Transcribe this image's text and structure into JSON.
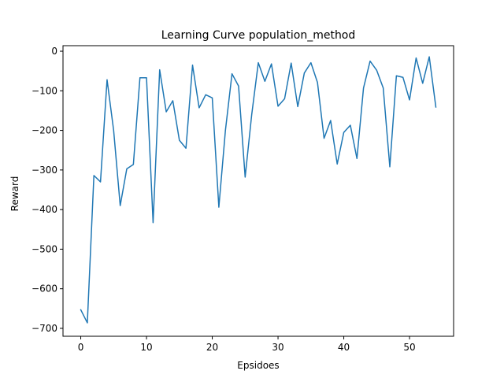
{
  "chart_data": {
    "type": "line",
    "title": "Learning Curve population_method",
    "xlabel": "Epsidoes",
    "ylabel": "Reward",
    "xlim": [
      -2.7,
      56.7
    ],
    "ylim": [
      -720,
      14
    ],
    "xticks": [
      0,
      10,
      20,
      30,
      40,
      50
    ],
    "yticks": [
      0,
      -100,
      -200,
      -300,
      -400,
      -500,
      -600,
      -700
    ],
    "xtick_labels": [
      "0",
      "10",
      "20",
      "30",
      "40",
      "50"
    ],
    "ytick_labels": [
      "0",
      "−100",
      "−200",
      "−300",
      "−400",
      "−500",
      "−600",
      "−700"
    ],
    "grid": false,
    "series": [
      {
        "color": "#1f77b4",
        "x": [
          0,
          1,
          2,
          3,
          4,
          5,
          6,
          7,
          8,
          9,
          10,
          11,
          12,
          13,
          14,
          15,
          16,
          17,
          18,
          19,
          20,
          21,
          22,
          23,
          24,
          25,
          26,
          27,
          28,
          29,
          30,
          31,
          32,
          33,
          34,
          35,
          36,
          37,
          38,
          39,
          40,
          41,
          42,
          43,
          44,
          45,
          46,
          47,
          48,
          49,
          50,
          51,
          52,
          53,
          54
        ],
        "y": [
          -653,
          -686,
          -314,
          -330,
          -72,
          -200,
          -390,
          -297,
          -286,
          -67,
          -67,
          -433,
          -47,
          -153,
          -125,
          -225,
          -245,
          -35,
          -143,
          -110,
          -118,
          -394,
          -200,
          -57,
          -88,
          -318,
          -160,
          -29,
          -76,
          -32,
          -139,
          -120,
          -30,
          -140,
          -55,
          -29,
          -79,
          -220,
          -175,
          -285,
          -205,
          -187,
          -271,
          -93,
          -25,
          -48,
          -93,
          -292,
          -62,
          -66,
          -123,
          -17,
          -81,
          -14,
          -141
        ]
      }
    ]
  }
}
